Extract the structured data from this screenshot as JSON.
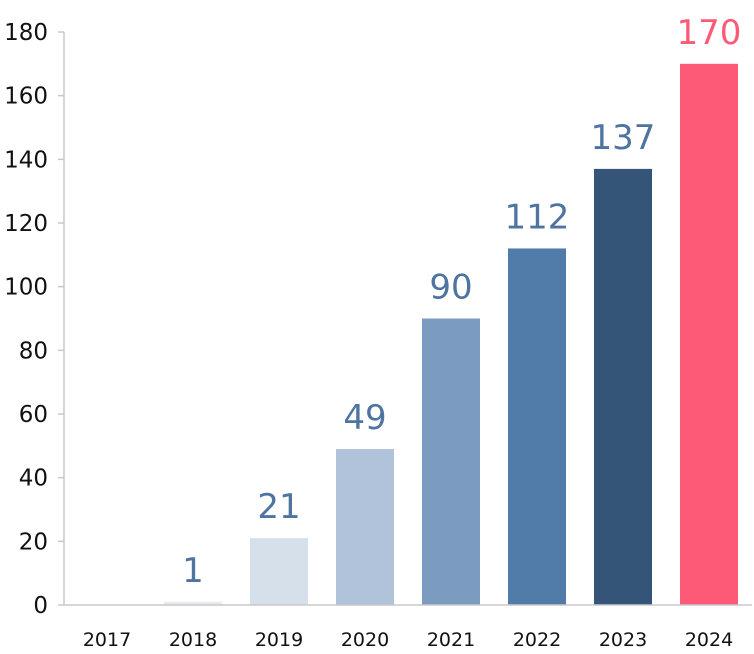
{
  "chart_data": {
    "type": "bar",
    "title": "",
    "xlabel": "",
    "ylabel": "",
    "categories": [
      "2017",
      "2018",
      "2019",
      "2020",
      "2021",
      "2022",
      "2023",
      "2024"
    ],
    "values": [
      0,
      1,
      21,
      49,
      90,
      112,
      137,
      170
    ],
    "data_labels": [
      "",
      "1",
      "21",
      "49",
      "90",
      "112",
      "137",
      "170"
    ],
    "ylim": [
      0,
      180
    ],
    "yticks": [
      0,
      20,
      40,
      60,
      80,
      100,
      120,
      140,
      160,
      180
    ],
    "grid": false,
    "legend": "none",
    "bar_colors": [
      "#dfe6ef",
      "#e6ebf1",
      "#d6e0eb",
      "#b1c3da",
      "#7b9bc0",
      "#517ba8",
      "#345478",
      "#fd5a78"
    ],
    "label_colors": [
      "#4f74a0",
      "#4f74a0",
      "#4f74a0",
      "#4f74a0",
      "#4f74a0",
      "#4f74a0",
      "#4f74a0",
      "#fd5a78"
    ]
  }
}
